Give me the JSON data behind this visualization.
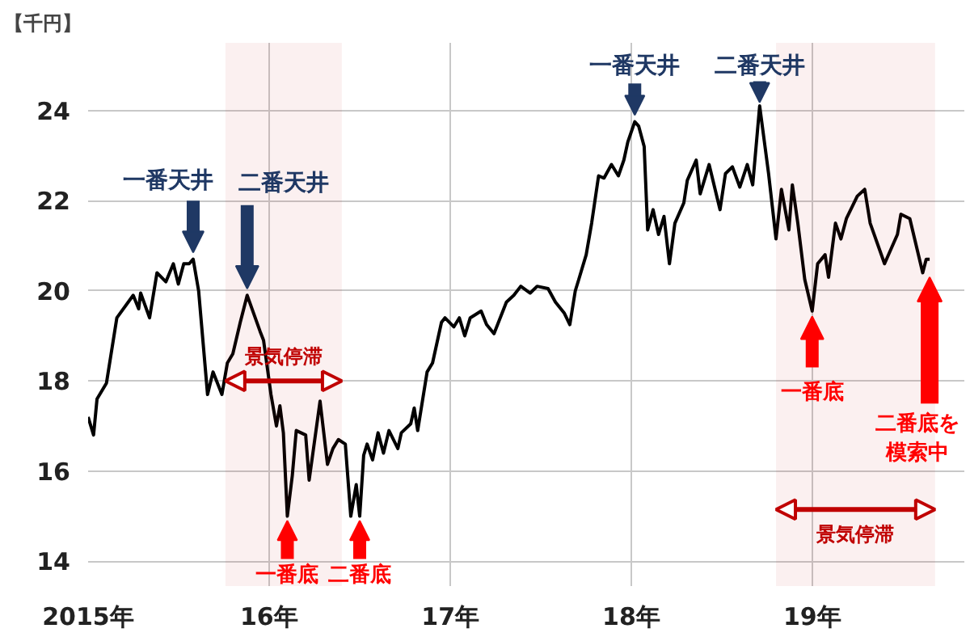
{
  "chart_data": {
    "type": "line",
    "ylabel": "【千円】",
    "x": [
      "2015-01-01",
      "2015-01-12",
      "2015-01-19",
      "2015-02-07",
      "2015-02-28",
      "2015-04-02",
      "2015-04-13",
      "2015-04-17",
      "2015-05-05",
      "2015-05-20",
      "2015-06-07",
      "2015-06-22",
      "2015-07-02",
      "2015-07-13",
      "2015-07-24",
      "2015-08-01",
      "2015-08-12",
      "2015-08-30",
      "2015-09-10",
      "2015-09-28",
      "2015-10-09",
      "2015-10-20",
      "2015-11-04",
      "2015-11-18",
      "2015-12-14",
      "2015-12-21",
      "2016-01-05",
      "2016-01-16",
      "2016-01-23",
      "2016-01-30",
      "2016-02-07",
      "2016-02-17",
      "2016-02-25",
      "2016-03-15",
      "2016-03-22",
      "2016-04-13",
      "2016-04-28",
      "2016-05-09",
      "2016-05-20",
      "2016-06-03",
      "2016-06-14",
      "2016-06-25",
      "2016-07-02",
      "2016-07-10",
      "2016-07-17",
      "2016-07-28",
      "2016-08-08",
      "2016-08-19",
      "2016-08-30",
      "2016-09-17",
      "2016-09-24",
      "2016-10-13",
      "2016-10-20",
      "2016-10-27",
      "2016-11-15",
      "2016-11-26",
      "2016-12-14",
      "2016-12-21",
      "2017-01-08",
      "2017-01-19",
      "2017-01-30",
      "2017-02-10",
      "2017-03-04",
      "2017-03-15",
      "2017-03-30",
      "2017-04-24",
      "2017-05-09",
      "2017-05-23",
      "2017-06-11",
      "2017-06-25",
      "2017-07-17",
      "2017-08-01",
      "2017-08-19",
      "2017-08-30",
      "2017-09-10",
      "2017-09-17",
      "2017-10-02",
      "2017-10-13",
      "2017-10-27",
      "2017-11-07",
      "2017-11-22",
      "2017-12-06",
      "2017-12-17",
      "2017-12-25",
      "2018-01-08",
      "2018-01-16",
      "2018-01-27",
      "2018-02-03",
      "2018-02-14",
      "2018-02-25",
      "2018-03-08",
      "2018-03-19",
      "2018-03-30",
      "2018-04-17",
      "2018-04-24",
      "2018-05-12",
      "2018-05-20",
      "2018-06-07",
      "2018-06-29",
      "2018-07-10",
      "2018-07-24",
      "2018-08-08",
      "2018-08-23",
      "2018-09-03",
      "2018-09-17",
      "2018-10-05",
      "2018-10-20",
      "2018-10-31",
      "2018-11-15",
      "2018-11-22",
      "2018-12-03",
      "2018-12-17",
      "2019-01-01",
      "2019-01-12",
      "2019-01-27",
      "2019-02-03",
      "2019-02-17",
      "2019-02-28",
      "2019-03-11",
      "2019-04-02",
      "2019-04-17",
      "2019-04-28",
      "2019-05-27",
      "2019-06-22",
      "2019-06-29",
      "2019-07-17",
      "2019-08-12",
      "2019-08-19",
      "2019-08-26"
    ],
    "series": [
      {
        "color": "#000000",
        "values": [
          17.2,
          16.8,
          17.6,
          17.95,
          19.4,
          19.9,
          19.6,
          19.95,
          19.4,
          20.4,
          20.2,
          20.6,
          20.15,
          20.6,
          20.6,
          20.7,
          20.0,
          17.7,
          18.2,
          17.7,
          18.4,
          18.6,
          19.3,
          19.9,
          19.1,
          18.9,
          17.7,
          17.0,
          17.45,
          16.85,
          15.0,
          15.9,
          16.9,
          16.8,
          15.8,
          17.55,
          16.15,
          16.5,
          16.7,
          16.6,
          15.0,
          15.7,
          15.0,
          16.35,
          16.6,
          16.25,
          16.85,
          16.4,
          16.9,
          16.5,
          16.85,
          17.05,
          17.4,
          16.9,
          18.2,
          18.4,
          19.3,
          19.4,
          19.2,
          19.4,
          19.0,
          19.4,
          19.55,
          19.25,
          19.05,
          19.75,
          19.9,
          20.1,
          19.95,
          20.1,
          20.05,
          19.75,
          19.5,
          19.25,
          20.0,
          20.25,
          20.8,
          21.5,
          22.55,
          22.5,
          22.8,
          22.55,
          22.9,
          23.3,
          23.75,
          23.65,
          23.2,
          21.35,
          21.8,
          21.25,
          21.65,
          20.6,
          21.5,
          21.95,
          22.45,
          22.9,
          22.15,
          22.8,
          21.8,
          22.6,
          22.75,
          22.3,
          22.8,
          22.35,
          24.1,
          22.6,
          21.15,
          22.25,
          21.35,
          22.35,
          21.5,
          20.25,
          19.55,
          20.6,
          20.8,
          20.3,
          21.5,
          21.15,
          21.6,
          22.1,
          22.25,
          21.5,
          20.6,
          21.25,
          21.7,
          21.6,
          20.4,
          20.7,
          20.7
        ]
      }
    ],
    "xlim": [
      "2015-01-01",
      "2019-11-04"
    ],
    "xticks": [
      {
        "value": "2015-01-01",
        "label": "2015年"
      },
      {
        "value": "2016-01-01",
        "label": "16年"
      },
      {
        "value": "2017-01-01",
        "label": "17年"
      },
      {
        "value": "2018-01-01",
        "label": "18年"
      },
      {
        "value": "2019-01-01",
        "label": "19年"
      }
    ],
    "ylim": [
      13.45,
      25.5
    ],
    "yticks": [
      14,
      16,
      18,
      20,
      22,
      24
    ],
    "grid": true,
    "marker": "none",
    "line_style": "solid",
    "annotations": [
      {
        "text": "一番天井",
        "x": "2015-08-01",
        "y": 20.7
      },
      {
        "text": "二番天井",
        "x": "2015-11-18",
        "y": 19.9
      },
      {
        "text": "一番底",
        "x": "2016-02-07",
        "y": 15.0
      },
      {
        "text": "二番底",
        "x": "2016-07-02",
        "y": 15.0
      },
      {
        "text": "一番天井",
        "x": "2018-01-08",
        "y": 23.75
      },
      {
        "text": "二番天井",
        "x": "2018-09-17",
        "y": 24.1
      },
      {
        "text": "一番底",
        "x": "2019-01-01",
        "y": 19.55
      },
      "二番底を模索中"
    ],
    "bands": [
      {
        "axis": "x",
        "from": "2015-10-05",
        "to": "2016-05-27",
        "label": "景気停滞",
        "color": "#c00000"
      },
      {
        "axis": "x",
        "from": "2018-10-20",
        "to": "2019-09-06",
        "label": "景気停滞",
        "color": "#c00000"
      }
    ]
  }
}
